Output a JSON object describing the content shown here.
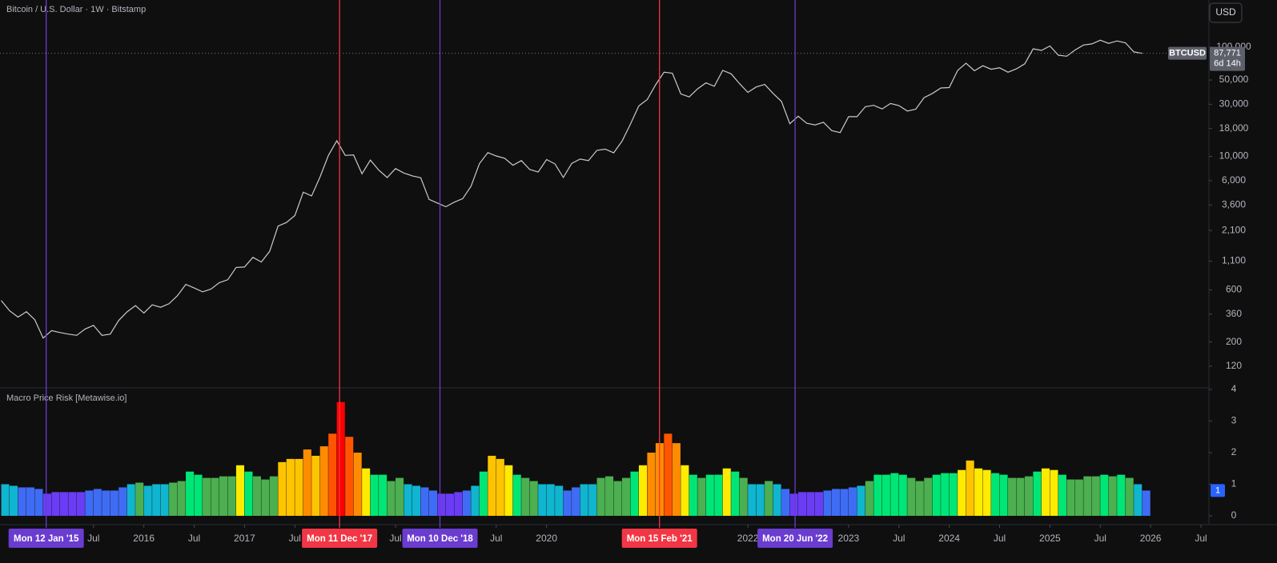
{
  "header": {
    "title": "Bitcoin / U.S. Dollar · 1W · Bitstamp",
    "currency_button": "USD"
  },
  "chart_data": [
    {
      "type": "line",
      "title": "Bitcoin / U.S. Dollar · 1W · Bitstamp",
      "symbol": "BTCUSD",
      "last_price_label": "87,771",
      "countdown": "6d 14h",
      "color": "#c8cad0",
      "log_scale": true,
      "xlim": [
        "2014-07-27",
        "2026-07-30"
      ],
      "ylim": [
        76,
        270000
      ],
      "yticks": [
        120,
        200,
        360,
        600,
        {
          "value": 1100,
          "label": "1,100"
        },
        {
          "value": 2100,
          "label": "2,100"
        },
        {
          "value": 3600,
          "label": "3,600"
        },
        {
          "value": 6000,
          "label": "6,000"
        },
        {
          "value": 10000,
          "label": "10,000"
        },
        {
          "value": 18000,
          "label": "18,000"
        },
        {
          "value": 30000,
          "label": "30,000"
        },
        {
          "value": 50000,
          "label": "50,000"
        },
        {
          "value": 100000,
          "label": "100,000"
        }
      ],
      "x": [
        "2014-08",
        "2014-09",
        "2014-10",
        "2014-11",
        "2014-12",
        "2015-01",
        "2015-02",
        "2015-03",
        "2015-04",
        "2015-05",
        "2015-06",
        "2015-07",
        "2015-08",
        "2015-09",
        "2015-10",
        "2015-11",
        "2015-12",
        "2016-01",
        "2016-02",
        "2016-03",
        "2016-04",
        "2016-05",
        "2016-06",
        "2016-07",
        "2016-08",
        "2016-09",
        "2016-10",
        "2016-11",
        "2016-12",
        "2017-01",
        "2017-02",
        "2017-03",
        "2017-04",
        "2017-05",
        "2017-06",
        "2017-07",
        "2017-08",
        "2017-09",
        "2017-10",
        "2017-11",
        "2017-12",
        "2018-01",
        "2018-02",
        "2018-03",
        "2018-04",
        "2018-05",
        "2018-06",
        "2018-07",
        "2018-08",
        "2018-09",
        "2018-10",
        "2018-11",
        "2018-12",
        "2019-01",
        "2019-02",
        "2019-03",
        "2019-04",
        "2019-05",
        "2019-06",
        "2019-07",
        "2019-08",
        "2019-09",
        "2019-10",
        "2019-11",
        "2019-12",
        "2020-01",
        "2020-02",
        "2020-03",
        "2020-04",
        "2020-05",
        "2020-06",
        "2020-07",
        "2020-08",
        "2020-09",
        "2020-10",
        "2020-11",
        "2020-12",
        "2021-01",
        "2021-02",
        "2021-03",
        "2021-04",
        "2021-05",
        "2021-06",
        "2021-07",
        "2021-08",
        "2021-09",
        "2021-10",
        "2021-11",
        "2021-12",
        "2022-01",
        "2022-02",
        "2022-03",
        "2022-04",
        "2022-05",
        "2022-06",
        "2022-07",
        "2022-08",
        "2022-09",
        "2022-10",
        "2022-11",
        "2022-12",
        "2023-01",
        "2023-02",
        "2023-03",
        "2023-04",
        "2023-05",
        "2023-06",
        "2023-07",
        "2023-08",
        "2023-09",
        "2023-10",
        "2023-11",
        "2023-12",
        "2024-01",
        "2024-02",
        "2024-03",
        "2024-04",
        "2024-05",
        "2024-06",
        "2024-07",
        "2024-08",
        "2024-09",
        "2024-10",
        "2024-11",
        "2024-12",
        "2025-01",
        "2025-02",
        "2025-03",
        "2025-04",
        "2025-05",
        "2025-06",
        "2025-07",
        "2025-08",
        "2025-09",
        "2025-10",
        "2025-11",
        "2025-12"
      ],
      "values": [
        480,
        386,
        338,
        378,
        320,
        217,
        254,
        244,
        236,
        230,
        263,
        284,
        230,
        236,
        314,
        377,
        430,
        368,
        437,
        416,
        448,
        531,
        673,
        624,
        575,
        609,
        698,
        742,
        963,
        970,
        1190,
        1080,
        1350,
        2300,
        2480,
        2875,
        4700,
        4340,
        6470,
        10200,
        13900,
        10200,
        10300,
        6930,
        9240,
        7490,
        6400,
        7730,
        7030,
        6630,
        6370,
        4040,
        3740,
        3460,
        3810,
        4100,
        5320,
        8560,
        10820,
        10080,
        9600,
        8290,
        9150,
        7570,
        7190,
        9350,
        8540,
        6410,
        8620,
        9450,
        9140,
        11350,
        11650,
        10780,
        13800,
        19700,
        29000,
        33100,
        45200,
        58900,
        57700,
        37300,
        35000,
        41500,
        47100,
        43800,
        61300,
        57000,
        46300,
        38500,
        43200,
        45500,
        37700,
        31800,
        19900,
        23300,
        20100,
        19400,
        20500,
        17200,
        16500,
        23100,
        23100,
        28500,
        29300,
        27200,
        30500,
        29200,
        26000,
        27000,
        34500,
        37700,
        42300,
        42600,
        61200,
        71300,
        60700,
        67500,
        62700,
        64600,
        58900,
        63300,
        70300,
        96400,
        93400,
        102400,
        84400,
        82500,
        94200,
        104600,
        107100,
        115700,
        108200,
        114000,
        109600,
        90400,
        87771
      ]
    },
    {
      "type": "bar",
      "title": "Macro Price Risk [Metawise.io]",
      "last_value_label": "1",
      "last_label_color": "#2962ff",
      "color_thresholds": [
        0.8,
        0.95,
        1.05,
        1.3,
        1.45,
        1.65,
        2,
        2.5,
        3
      ],
      "colors": [
        "#6a3df5",
        "#3f6cf5",
        "#10b5d0",
        "#4caf50",
        "#00e676",
        "#ffeb00",
        "#ffc400",
        "#ff8c00",
        "#ff5500",
        "#ff0000"
      ],
      "xlim": [
        "2014-07-27",
        "2026-07-30"
      ],
      "ylim": [
        0,
        4.05
      ],
      "yticks": [
        0,
        1,
        2,
        3,
        4
      ],
      "xticks": [
        {
          "value": "2015-07",
          "label": "Jul"
        },
        {
          "value": "2016-01",
          "label": "2016"
        },
        {
          "value": "2016-07",
          "label": "Jul"
        },
        {
          "value": "2017-01",
          "label": "2017"
        },
        {
          "value": "2017-07",
          "label": "Jul"
        },
        {
          "value": "2018-07",
          "label": "Jul"
        },
        {
          "value": "2019-07",
          "label": "Jul"
        },
        {
          "value": "2020-01",
          "label": "2020"
        },
        {
          "value": "2022-01",
          "label": "2022"
        },
        {
          "value": "2023-01",
          "label": "2023"
        },
        {
          "value": "2023-07",
          "label": "Jul"
        },
        {
          "value": "2024-01",
          "label": "2024"
        },
        {
          "value": "2024-07",
          "label": "Jul"
        },
        {
          "value": "2025-01",
          "label": "2025"
        },
        {
          "value": "2025-07",
          "label": "Jul"
        },
        {
          "value": "2026-01",
          "label": "2026"
        },
        {
          "value": "2026-07",
          "label": "Jul"
        }
      ],
      "annotations": [
        {
          "x": "2015-01-12",
          "label": "Mon 12 Jan '15",
          "color": "#6a3ccf"
        },
        {
          "x": "2017-12-11",
          "label": "Mon 11 Dec '17",
          "color": "#f23645"
        },
        {
          "x": "2018-12-10",
          "label": "Mon 10 Dec '18",
          "color": "#6a3ccf"
        },
        {
          "x": "2021-02-15",
          "label": "Mon 15 Feb '21",
          "color": "#f23645"
        },
        {
          "x": "2022-06-20",
          "label": "Mon 20 Jun '22",
          "color": "#6a3ccf"
        }
      ],
      "x": [
        "2014-08",
        "2014-09",
        "2014-10",
        "2014-11",
        "2014-12",
        "2015-01",
        "2015-02",
        "2015-03",
        "2015-04",
        "2015-05",
        "2015-06",
        "2015-07",
        "2015-08",
        "2015-09",
        "2015-10",
        "2015-11",
        "2015-12",
        "2016-01",
        "2016-02",
        "2016-03",
        "2016-04",
        "2016-05",
        "2016-06",
        "2016-07",
        "2016-08",
        "2016-09",
        "2016-10",
        "2016-11",
        "2016-12",
        "2017-01",
        "2017-02",
        "2017-03",
        "2017-04",
        "2017-05",
        "2017-06",
        "2017-07",
        "2017-08",
        "2017-09",
        "2017-10",
        "2017-11",
        "2017-12",
        "2018-01",
        "2018-02",
        "2018-03",
        "2018-04",
        "2018-05",
        "2018-06",
        "2018-07",
        "2018-08",
        "2018-09",
        "2018-10",
        "2018-11",
        "2018-12",
        "2019-01",
        "2019-02",
        "2019-03",
        "2019-04",
        "2019-05",
        "2019-06",
        "2019-07",
        "2019-08",
        "2019-09",
        "2019-10",
        "2019-11",
        "2019-12",
        "2020-01",
        "2020-02",
        "2020-03",
        "2020-04",
        "2020-05",
        "2020-06",
        "2020-07",
        "2020-08",
        "2020-09",
        "2020-10",
        "2020-11",
        "2020-12",
        "2021-01",
        "2021-02",
        "2021-03",
        "2021-04",
        "2021-05",
        "2021-06",
        "2021-07",
        "2021-08",
        "2021-09",
        "2021-10",
        "2021-11",
        "2021-12",
        "2022-01",
        "2022-02",
        "2022-03",
        "2022-04",
        "2022-05",
        "2022-06",
        "2022-07",
        "2022-08",
        "2022-09",
        "2022-10",
        "2022-11",
        "2022-12",
        "2023-01",
        "2023-02",
        "2023-03",
        "2023-04",
        "2023-05",
        "2023-06",
        "2023-07",
        "2023-08",
        "2023-09",
        "2023-10",
        "2023-11",
        "2023-12",
        "2024-01",
        "2024-02",
        "2024-03",
        "2024-04",
        "2024-05",
        "2024-06",
        "2024-07",
        "2024-08",
        "2024-09",
        "2024-10",
        "2024-11",
        "2024-12",
        "2025-01",
        "2025-02",
        "2025-03",
        "2025-04",
        "2025-05",
        "2025-06",
        "2025-07",
        "2025-08",
        "2025-09",
        "2025-10",
        "2025-11",
        "2025-12"
      ],
      "values": [
        1.0,
        0.95,
        0.9,
        0.9,
        0.85,
        0.7,
        0.75,
        0.75,
        0.75,
        0.75,
        0.8,
        0.85,
        0.8,
        0.8,
        0.9,
        1.0,
        1.05,
        0.95,
        1.0,
        1.0,
        1.05,
        1.1,
        1.4,
        1.3,
        1.2,
        1.2,
        1.25,
        1.25,
        1.6,
        1.4,
        1.25,
        1.15,
        1.25,
        1.7,
        1.8,
        1.8,
        2.1,
        1.9,
        2.2,
        2.6,
        3.6,
        2.5,
        2.0,
        1.5,
        1.3,
        1.3,
        1.1,
        1.2,
        1.0,
        0.95,
        0.9,
        0.8,
        0.7,
        0.7,
        0.75,
        0.8,
        0.95,
        1.4,
        1.9,
        1.8,
        1.6,
        1.3,
        1.2,
        1.1,
        1.0,
        1.0,
        0.95,
        0.8,
        0.9,
        1.0,
        1.0,
        1.2,
        1.25,
        1.1,
        1.2,
        1.4,
        1.6,
        2.0,
        2.3,
        2.6,
        2.3,
        1.6,
        1.3,
        1.2,
        1.3,
        1.3,
        1.5,
        1.4,
        1.2,
        1.0,
        1.0,
        1.1,
        1.0,
        0.85,
        0.7,
        0.75,
        0.75,
        0.75,
        0.8,
        0.85,
        0.85,
        0.9,
        0.95,
        1.1,
        1.3,
        1.3,
        1.35,
        1.3,
        1.2,
        1.1,
        1.2,
        1.3,
        1.35,
        1.35,
        1.45,
        1.75,
        1.5,
        1.45,
        1.35,
        1.3,
        1.2,
        1.2,
        1.25,
        1.4,
        1.5,
        1.45,
        1.3,
        1.15,
        1.15,
        1.25,
        1.25,
        1.3,
        1.25,
        1.3,
        1.2,
        1.0,
        0.8
      ]
    }
  ]
}
